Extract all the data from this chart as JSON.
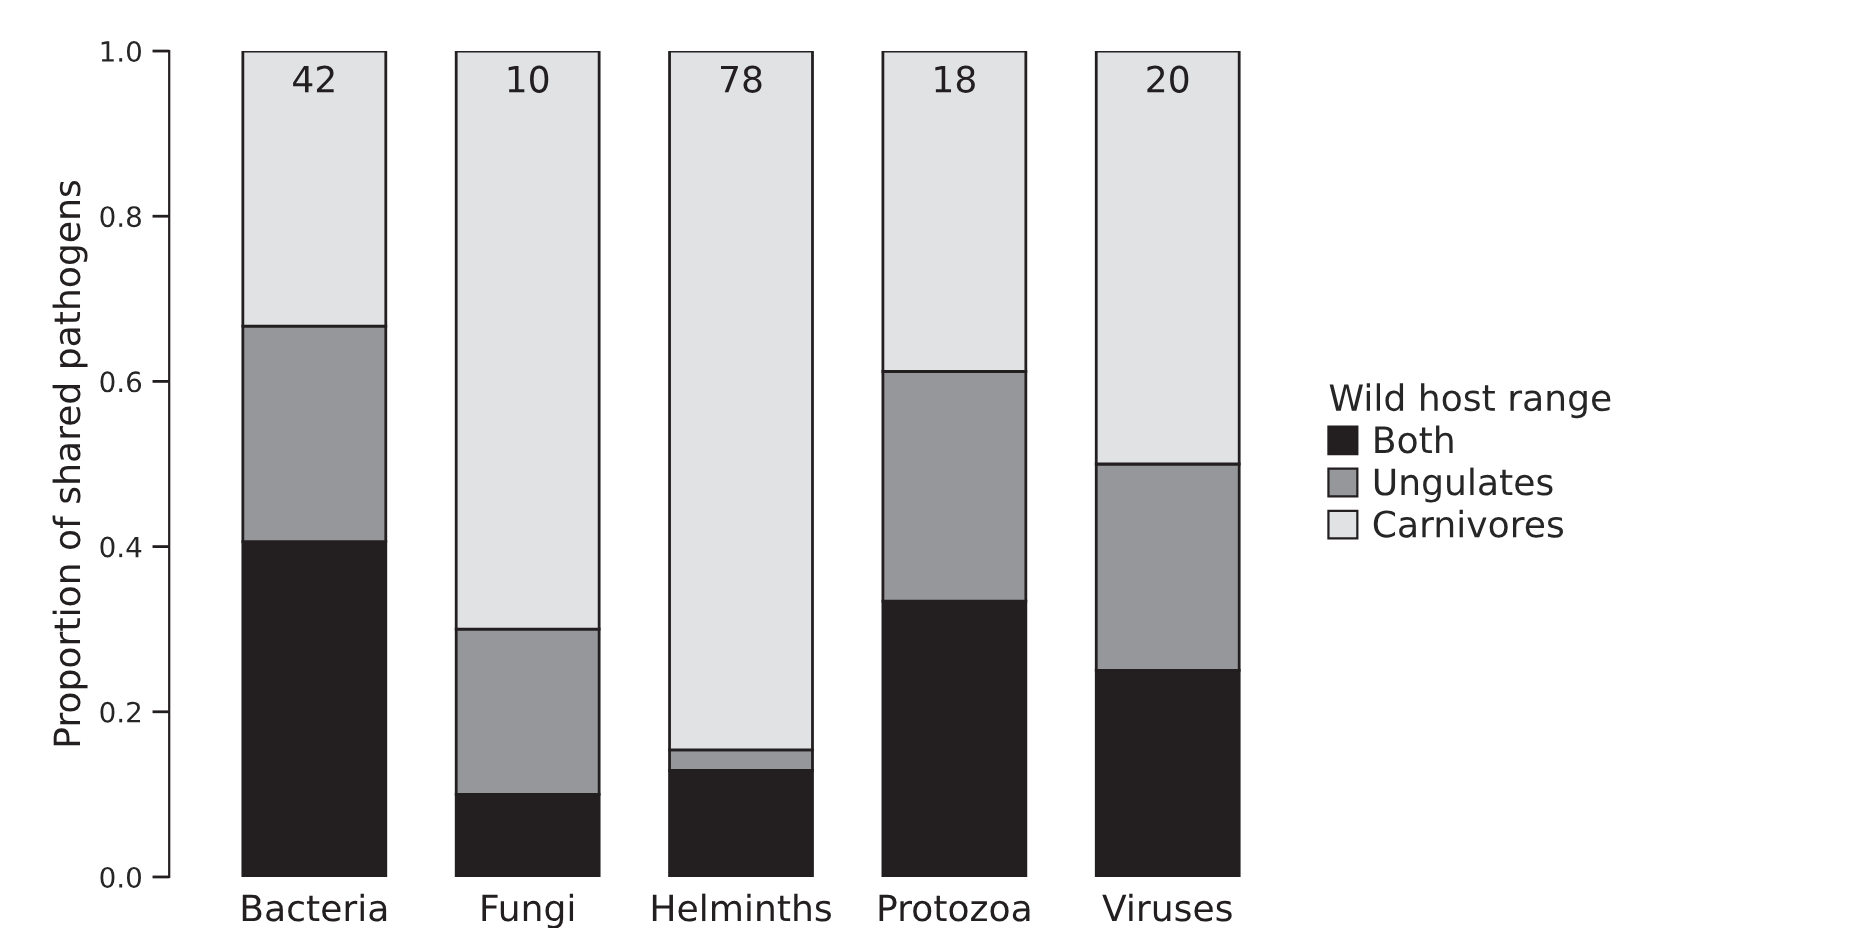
{
  "chart_data": {
    "type": "bar",
    "stacked": true,
    "ylabel": "Proportion of shared pathogens",
    "legend_title": "Wild host range",
    "legend": "right",
    "categories": [
      "Bacteria",
      "Fungi",
      "Helminths",
      "Protozoa",
      "Viruses"
    ],
    "series": [
      {
        "name": "Both",
        "color": "#231f20",
        "values": [
          0.406,
          0.1,
          0.129,
          0.334,
          0.25
        ]
      },
      {
        "name": "Ungulates",
        "color": "#96979a",
        "values": [
          0.261,
          0.2,
          0.025,
          0.278,
          0.25
        ]
      },
      {
        "name": "Carnivores",
        "color": "#e1e2e4",
        "values": [
          0.333,
          0.7,
          0.846,
          0.388,
          0.5
        ]
      }
    ],
    "ylim": [
      0,
      1
    ],
    "yticks": [
      {
        "value": 0,
        "label": "0.0"
      },
      {
        "value": 0.2,
        "label": "0.2"
      },
      {
        "value": 0.4,
        "label": "0.4"
      },
      {
        "value": 0.6,
        "label": "0.6"
      },
      {
        "value": 0.8,
        "label": "0.8"
      },
      {
        "value": 1,
        "label": "1.0"
      }
    ],
    "annotations": [
      {
        "text": "42",
        "x": "Bacteria",
        "y": 1
      },
      {
        "text": "10",
        "x": "Fungi",
        "y": 1
      },
      {
        "text": "78",
        "x": "Helminths",
        "y": 1
      },
      {
        "text": "18",
        "x": "Protozoa",
        "y": 1
      },
      {
        "text": "20",
        "x": "Viruses",
        "y": 1
      }
    ]
  }
}
